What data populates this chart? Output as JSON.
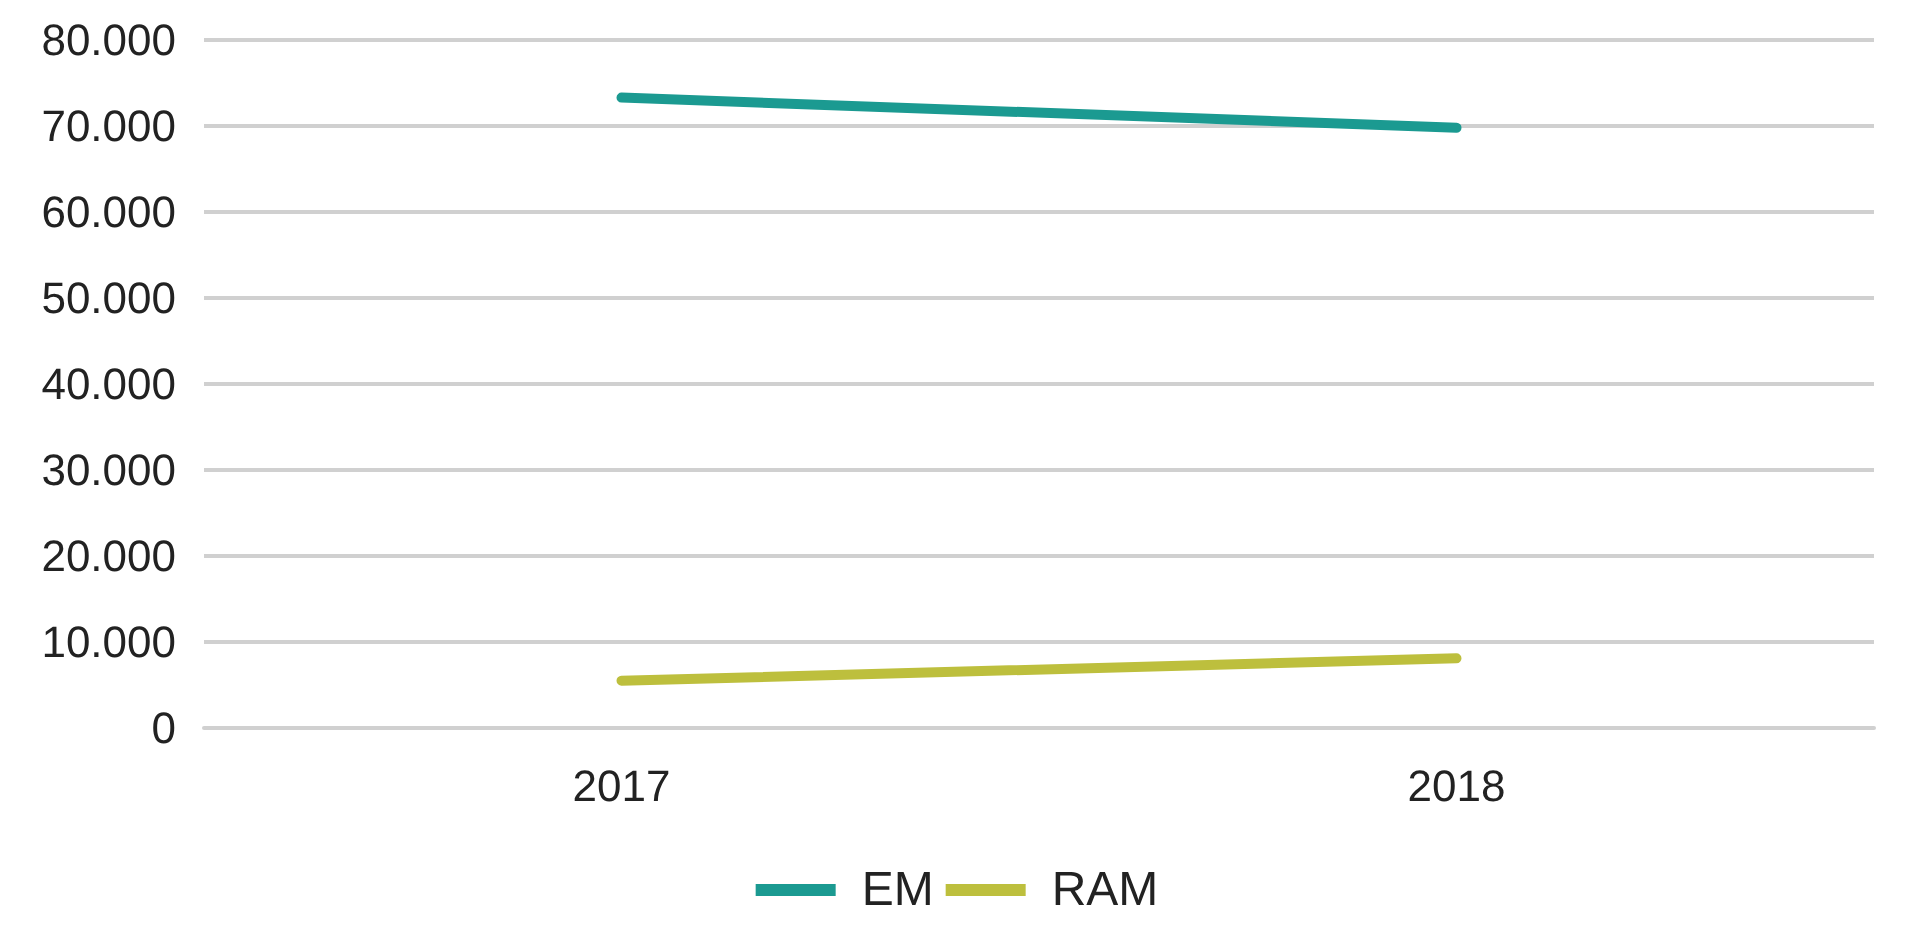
{
  "chart_data": {
    "type": "line",
    "categories": [
      "2017",
      "2018"
    ],
    "series": [
      {
        "name": "EM",
        "color": "#1b9a91",
        "values": [
          73300,
          69800
        ]
      },
      {
        "name": "RAM",
        "color": "#bdbf3d",
        "values": [
          5500,
          8100
        ]
      }
    ],
    "ylim": [
      0,
      80000
    ],
    "yticks": [
      {
        "value": 0,
        "label": "0"
      },
      {
        "value": 10000,
        "label": "10.000"
      },
      {
        "value": 20000,
        "label": "20.000"
      },
      {
        "value": 30000,
        "label": "30.000"
      },
      {
        "value": 40000,
        "label": "40.000"
      },
      {
        "value": 50000,
        "label": "50.000"
      },
      {
        "value": 60000,
        "label": "60.000"
      },
      {
        "value": 70000,
        "label": "70.000"
      },
      {
        "value": 80000,
        "label": "80.000"
      }
    ],
    "grid": "y",
    "legend": "bottom",
    "marker": "none",
    "line_style": "solid"
  }
}
